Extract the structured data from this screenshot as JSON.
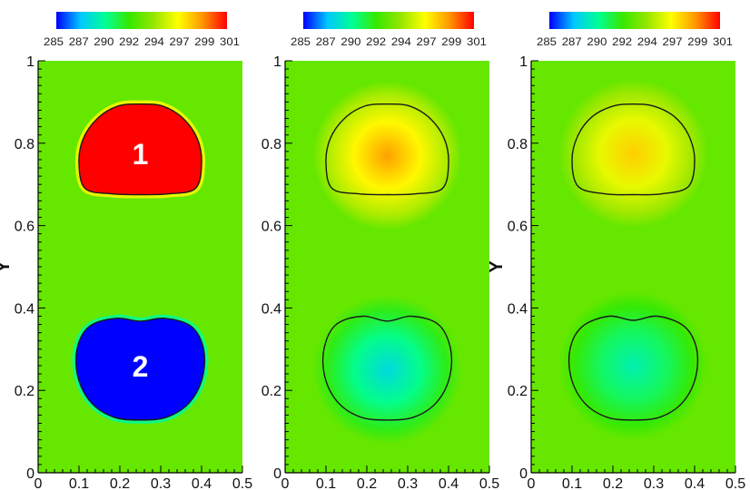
{
  "chart_data": [
    {
      "type": "heatmap",
      "ylabel": "Y",
      "x_ticks": [
        "0",
        "0.1",
        "0.2",
        "0.3",
        "0.4",
        "0.5"
      ],
      "y_ticks": [
        "0",
        "0.2",
        "0.4",
        "0.6",
        "0.8",
        "1"
      ],
      "xlim": [
        0,
        0.5
      ],
      "ylim": [
        0,
        1
      ],
      "colorbar": {
        "ticks": [
          "285",
          "287",
          "290",
          "292",
          "294",
          "297",
          "299",
          "301"
        ],
        "range": [
          285,
          301
        ],
        "colors": [
          "#0000ff",
          "#00c8ff",
          "#00ff96",
          "#36e800",
          "#96e600",
          "#ffff00",
          "#ff9600",
          "#ff0000"
        ]
      },
      "background_value": 293,
      "blobs": [
        {
          "label": "1",
          "center": [
            0.25,
            0.775
          ],
          "core_value": 301,
          "contour": [
            [
              0.1,
              0.75
            ],
            [
              0.11,
              0.81
            ],
            [
              0.145,
              0.86
            ],
            [
              0.195,
              0.89
            ],
            [
              0.25,
              0.895
            ],
            [
              0.305,
              0.89
            ],
            [
              0.355,
              0.86
            ],
            [
              0.39,
              0.81
            ],
            [
              0.4,
              0.75
            ],
            [
              0.385,
              0.69
            ],
            [
              0.32,
              0.677
            ],
            [
              0.25,
              0.675
            ],
            [
              0.18,
              0.677
            ],
            [
              0.115,
              0.69
            ]
          ]
        },
        {
          "label": "2",
          "center": [
            0.25,
            0.26
          ],
          "core_value": 285,
          "contour": [
            [
              0.25,
              0.368
            ],
            [
              0.19,
              0.375
            ],
            [
              0.125,
              0.355
            ],
            [
              0.095,
              0.3
            ],
            [
              0.098,
              0.23
            ],
            [
              0.13,
              0.17
            ],
            [
              0.185,
              0.135
            ],
            [
              0.25,
              0.128
            ],
            [
              0.315,
              0.135
            ],
            [
              0.37,
              0.17
            ],
            [
              0.402,
              0.23
            ],
            [
              0.405,
              0.3
            ],
            [
              0.375,
              0.355
            ],
            [
              0.31,
              0.375
            ]
          ]
        }
      ]
    },
    {
      "type": "heatmap",
      "x_ticks": [
        "0",
        "0.1",
        "0.2",
        "0.3",
        "0.4",
        "0.5"
      ],
      "y_ticks": [
        "0",
        "0.2",
        "0.4",
        "0.6",
        "0.8",
        "1"
      ],
      "xlim": [
        0,
        0.5
      ],
      "ylim": [
        0,
        1
      ],
      "colorbar": {
        "ticks": [
          "285",
          "287",
          "290",
          "292",
          "294",
          "297",
          "299",
          "301"
        ],
        "range": [
          285,
          301
        ],
        "colors": [
          "#0000ff",
          "#00c8ff",
          "#00ff96",
          "#36e800",
          "#96e600",
          "#ffff00",
          "#ff9600",
          "#ff0000"
        ]
      },
      "background_value": 293,
      "blobs": [
        {
          "center": [
            0.25,
            0.77
          ],
          "core_value": 298.5,
          "contour": [
            [
              0.1,
              0.75
            ],
            [
              0.11,
              0.81
            ],
            [
              0.145,
              0.86
            ],
            [
              0.195,
              0.89
            ],
            [
              0.25,
              0.895
            ],
            [
              0.305,
              0.89
            ],
            [
              0.355,
              0.86
            ],
            [
              0.39,
              0.81
            ],
            [
              0.4,
              0.75
            ],
            [
              0.385,
              0.69
            ],
            [
              0.32,
              0.677
            ],
            [
              0.25,
              0.675
            ],
            [
              0.18,
              0.677
            ],
            [
              0.115,
              0.69
            ]
          ]
        },
        {
          "center": [
            0.25,
            0.25
          ],
          "core_value": 288.0,
          "contour": [
            [
              0.25,
              0.368
            ],
            [
              0.19,
              0.38
            ],
            [
              0.125,
              0.36
            ],
            [
              0.095,
              0.3
            ],
            [
              0.098,
              0.23
            ],
            [
              0.13,
              0.17
            ],
            [
              0.185,
              0.135
            ],
            [
              0.25,
              0.128
            ],
            [
              0.315,
              0.135
            ],
            [
              0.37,
              0.17
            ],
            [
              0.402,
              0.23
            ],
            [
              0.405,
              0.3
            ],
            [
              0.375,
              0.36
            ],
            [
              0.31,
              0.38
            ]
          ]
        }
      ]
    },
    {
      "type": "heatmap",
      "ylabel": "Y",
      "x_ticks": [
        "0",
        "0.1",
        "0.2",
        "0.3",
        "0.4",
        "0.5"
      ],
      "y_ticks": [
        "0",
        "0.2",
        "0.4",
        "0.6",
        "0.8",
        "1"
      ],
      "xlim": [
        0,
        0.5
      ],
      "ylim": [
        0,
        1
      ],
      "colorbar": {
        "ticks": [
          "285",
          "287",
          "290",
          "292",
          "294",
          "297",
          "299",
          "301"
        ],
        "range": [
          285,
          301
        ],
        "colors": [
          "#0000ff",
          "#00c8ff",
          "#00ff96",
          "#36e800",
          "#96e600",
          "#ffff00",
          "#ff9600",
          "#ff0000"
        ]
      },
      "background_value": 293,
      "blobs": [
        {
          "center": [
            0.25,
            0.775
          ],
          "core_value": 297.5,
          "contour": [
            [
              0.1,
              0.76
            ],
            [
              0.115,
              0.82
            ],
            [
              0.15,
              0.865
            ],
            [
              0.2,
              0.89
            ],
            [
              0.25,
              0.895
            ],
            [
              0.3,
              0.89
            ],
            [
              0.35,
              0.865
            ],
            [
              0.385,
              0.82
            ],
            [
              0.4,
              0.76
            ],
            [
              0.385,
              0.695
            ],
            [
              0.32,
              0.677
            ],
            [
              0.25,
              0.675
            ],
            [
              0.18,
              0.677
            ],
            [
              0.115,
              0.695
            ]
          ]
        },
        {
          "center": [
            0.25,
            0.26
          ],
          "core_value": 289.0,
          "contour": [
            [
              0.25,
              0.37
            ],
            [
              0.19,
              0.38
            ],
            [
              0.125,
              0.355
            ],
            [
              0.095,
              0.3
            ],
            [
              0.098,
              0.23
            ],
            [
              0.13,
              0.17
            ],
            [
              0.185,
              0.135
            ],
            [
              0.25,
              0.128
            ],
            [
              0.315,
              0.135
            ],
            [
              0.37,
              0.17
            ],
            [
              0.402,
              0.23
            ],
            [
              0.405,
              0.3
            ],
            [
              0.375,
              0.355
            ],
            [
              0.31,
              0.38
            ]
          ]
        }
      ]
    }
  ]
}
